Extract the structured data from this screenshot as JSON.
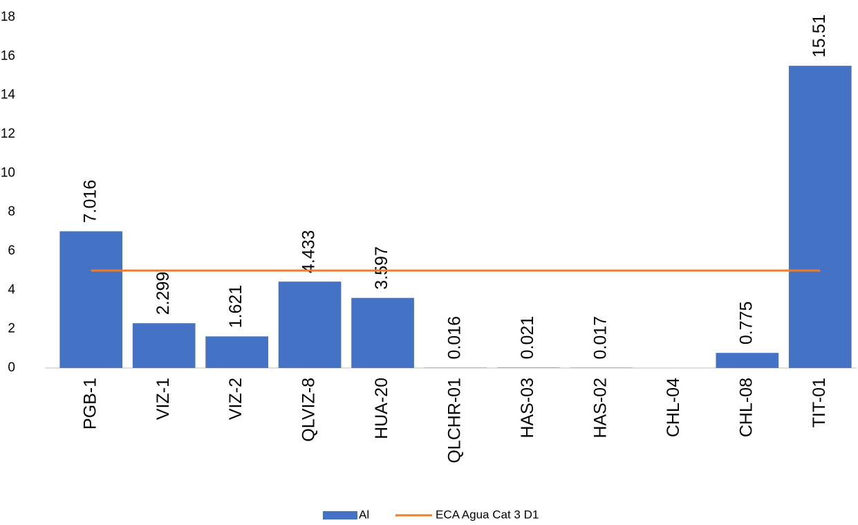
{
  "chart_data": {
    "type": "bar",
    "categories": [
      "PGB-1",
      "VIZ-1",
      "VIZ-2",
      "QLVIZ-8",
      "HUA-20",
      "QLCHR-01",
      "HAS-03",
      "HAS-02",
      "CHL-04",
      "CHL-08",
      "TIT-01"
    ],
    "series": [
      {
        "name": "Al",
        "type": "bar",
        "color": "#4472c4",
        "values": [
          7.016,
          2.299,
          1.621,
          4.433,
          3.597,
          0.016,
          0.021,
          0.017,
          null,
          0.775,
          15.51
        ]
      },
      {
        "name": "ECA Agua Cat 3 D1",
        "type": "line",
        "color": "#ed7d31",
        "values": [
          5,
          5,
          5,
          5,
          5,
          5,
          5,
          5,
          5,
          5,
          5
        ]
      }
    ],
    "ylim": [
      0,
      18
    ],
    "yticks": [
      0,
      2,
      4,
      6,
      8,
      10,
      12,
      14,
      16,
      18
    ],
    "grid": false,
    "legend": "bottom"
  }
}
